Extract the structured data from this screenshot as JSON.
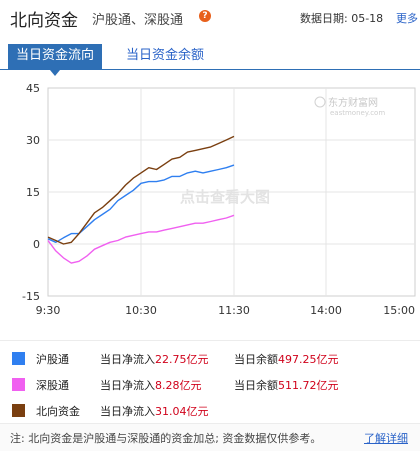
{
  "header": {
    "title": "北向资金",
    "subtitle": "沪股通、深股通",
    "help_icon": "question-circle-icon",
    "date_label": "数据日期: 05-18",
    "more_label": "更多"
  },
  "tabs": [
    {
      "label": "当日资金流向",
      "active": true
    },
    {
      "label": "当日资金余额",
      "active": false
    }
  ],
  "watermark": {
    "brand": "东方财富网",
    "domain": "eastmoney.com",
    "overlay": "点击查看大图"
  },
  "chart_data": {
    "type": "line",
    "x_ticks": [
      "9:30",
      "10:30",
      "11:30",
      "14:00",
      "15:00"
    ],
    "y_ticks": [
      "45",
      "30",
      "15",
      "0",
      "-15"
    ],
    "ylim": [
      -15,
      45
    ],
    "grid": true,
    "series": [
      {
        "name": "沪股通",
        "color": "#2f7ff0",
        "x": [
          0,
          5,
          10,
          15,
          20,
          25,
          30,
          35,
          40,
          45,
          50,
          55,
          60,
          65,
          70,
          75,
          80,
          85,
          90,
          95,
          100,
          105,
          110,
          115,
          120
        ],
        "values": [
          1.5,
          0.5,
          1.8,
          3.0,
          3.0,
          5.0,
          7.0,
          8.5,
          10.0,
          12.5,
          14.0,
          15.5,
          17.5,
          18.0,
          18.0,
          18.5,
          19.5,
          19.5,
          20.5,
          21.0,
          20.5,
          21.0,
          21.5,
          22.0,
          22.75
        ]
      },
      {
        "name": "深股通",
        "color": "#f060f0",
        "x": [
          0,
          5,
          10,
          15,
          20,
          25,
          30,
          35,
          40,
          45,
          50,
          55,
          60,
          65,
          70,
          75,
          80,
          85,
          90,
          95,
          100,
          105,
          110,
          115,
          120
        ],
        "values": [
          1.0,
          -2.0,
          -4.0,
          -5.5,
          -5.0,
          -3.5,
          -1.5,
          -0.5,
          0.5,
          1.0,
          2.0,
          2.5,
          3.0,
          3.5,
          3.5,
          4.0,
          4.5,
          5.0,
          5.5,
          6.0,
          6.0,
          6.5,
          7.0,
          7.5,
          8.28
        ]
      },
      {
        "name": "北向资金",
        "color": "#7a3f10",
        "x": [
          0,
          5,
          10,
          15,
          20,
          25,
          30,
          35,
          40,
          45,
          50,
          55,
          60,
          65,
          70,
          75,
          80,
          85,
          90,
          95,
          100,
          105,
          110,
          115,
          120
        ],
        "values": [
          2.0,
          1.0,
          0.0,
          0.5,
          3.0,
          6.0,
          9.0,
          10.5,
          12.5,
          14.5,
          17.0,
          19.0,
          20.5,
          22.0,
          21.5,
          23.0,
          24.5,
          25.0,
          26.5,
          27.0,
          27.5,
          28.0,
          29.0,
          30.0,
          31.04
        ]
      }
    ]
  },
  "legend": [
    {
      "name": "沪股通",
      "color": "#2f7ff0",
      "inflow_label": "当日净流入",
      "inflow_value": "22.75亿元",
      "balance_label": "当日余额",
      "balance_value": "497.25亿元"
    },
    {
      "name": "深股通",
      "color": "#f060f0",
      "inflow_label": "当日净流入",
      "inflow_value": "8.28亿元",
      "balance_label": "当日余额",
      "balance_value": "511.72亿元"
    },
    {
      "name": "北向资金",
      "color": "#7a3f10",
      "inflow_label": "当日净流入",
      "inflow_value": "31.04亿元"
    }
  ],
  "footer": {
    "note": "注: 北向资金是沪股通与深股通的资金加总; 资金数据仅供参考。",
    "link_label": "了解详细"
  }
}
